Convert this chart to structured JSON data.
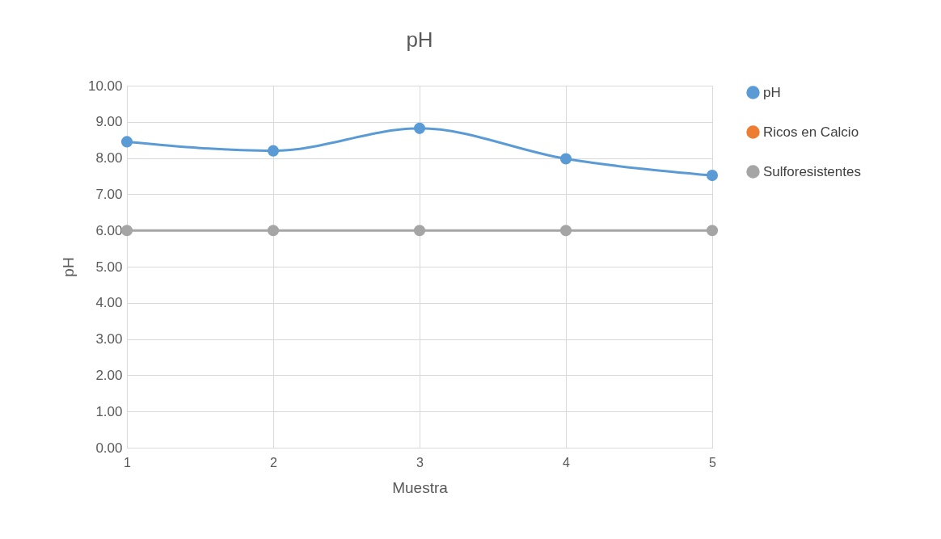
{
  "chart_data": {
    "type": "line",
    "title": "pH",
    "xlabel": "Muestra",
    "ylabel": "pH",
    "categories": [
      "1",
      "2",
      "3",
      "4",
      "5"
    ],
    "series": [
      {
        "name": "pH",
        "color": "#5b9bd5",
        "values": [
          8.45,
          8.2,
          8.82,
          7.98,
          7.52
        ]
      },
      {
        "name": "Ricos en Calcio",
        "color": "#ed7d31",
        "values": [
          null,
          null,
          null,
          null,
          null
        ]
      },
      {
        "name": "Sulforesistentes",
        "color": "#a5a5a5",
        "values": [
          6,
          6,
          6,
          6,
          6
        ]
      }
    ],
    "ylim": [
      0,
      10
    ],
    "yticks": [
      {
        "value": 0,
        "label": "0.00"
      },
      {
        "value": 1,
        "label": "1.00"
      },
      {
        "value": 2,
        "label": "2.00"
      },
      {
        "value": 3,
        "label": "3.00"
      },
      {
        "value": 4,
        "label": "4.00"
      },
      {
        "value": 5,
        "label": "5.00"
      },
      {
        "value": 6,
        "label": "6.00"
      },
      {
        "value": 7,
        "label": "7.00"
      },
      {
        "value": 8,
        "label": "8.00"
      },
      {
        "value": 9,
        "label": "9.00"
      },
      {
        "value": 10,
        "label": "10.00"
      }
    ],
    "grid": true,
    "legend": "right",
    "marker": "circle",
    "line_style": "solid"
  }
}
